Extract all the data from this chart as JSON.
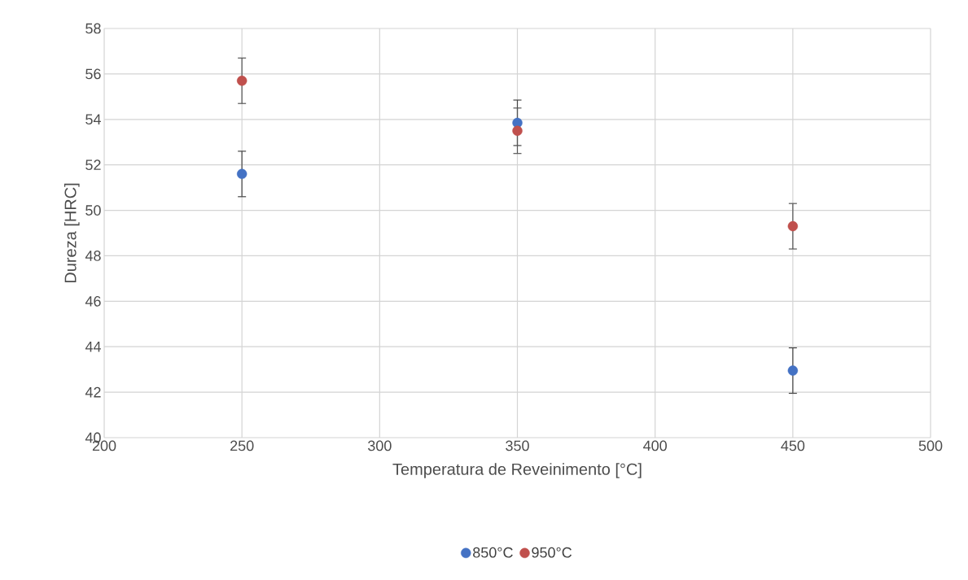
{
  "chart_data": {
    "type": "scatter",
    "xlabel": "Temperatura de Reveinimento [°C]",
    "ylabel": "Dureza [HRC]",
    "x": [
      250,
      350,
      450
    ],
    "series": [
      {
        "name": "850°C",
        "color": "#4472c4",
        "values": [
          51.6,
          53.85,
          42.95
        ],
        "errors": [
          1,
          1,
          1
        ]
      },
      {
        "name": "950°C",
        "color": "#c0504d",
        "values": [
          55.7,
          53.5,
          49.3
        ],
        "errors": [
          1,
          1,
          1
        ]
      }
    ],
    "xlim": [
      200,
      500
    ],
    "xticks": [
      200,
      250,
      300,
      350,
      400,
      450,
      500
    ],
    "ylim": [
      40,
      58
    ],
    "yticks": [
      40,
      42,
      44,
      46,
      48,
      50,
      52,
      54,
      56,
      58
    ],
    "grid": true,
    "legend": "bottom",
    "marker": "circle"
  }
}
